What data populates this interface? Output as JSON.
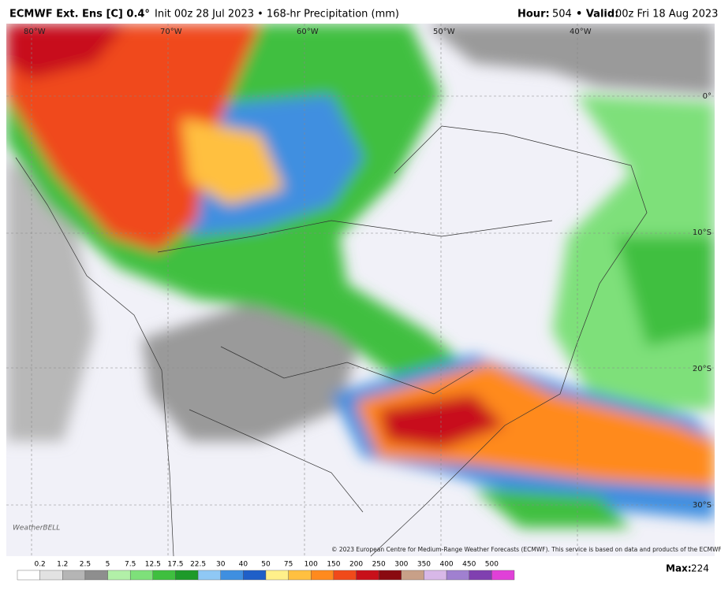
{
  "header": {
    "model": "ECMWF Ext. Ens [C] 0.4°",
    "description": "Init 00z 28 Jul 2023 • 168-hr Precipitation (mm)",
    "hour_label": "Hour:",
    "hour": "504",
    "valid_label": "• Valid:",
    "valid": "00z Fri 18 Aug 2023"
  },
  "map": {
    "longitudes": [
      "80°W",
      "70°W",
      "60°W",
      "50°W",
      "40°W"
    ],
    "latitudes": [
      "0°",
      "10°S",
      "20°S",
      "30°S"
    ],
    "logo": "WeatherBELL",
    "copyright": "© 2023 European Centre for Medium-Range Weather Forecasts (ECMWF). This service is based on data and products of the ECMWF."
  },
  "colorbar": {
    "ticks": [
      0.2,
      1.2,
      2.5,
      5,
      7.5,
      12.5,
      17.5,
      22.5,
      30,
      40,
      50,
      75,
      100,
      150,
      200,
      250,
      300,
      350,
      400,
      450,
      500
    ],
    "colors": [
      "#ffffff",
      "#e2e2e2",
      "#b5b5b5",
      "#8e8e8e",
      "#b2f0a8",
      "#7ee07a",
      "#3fbf3f",
      "#1e9a2a",
      "#8fc8f5",
      "#3f8fe0",
      "#1f5fc8",
      "#fff08a",
      "#ffc040",
      "#ff8a1e",
      "#f04a1a",
      "#c8101a",
      "#8a0a10",
      "#c8a088",
      "#d8b8e8",
      "#a080d0",
      "#8040b0",
      "#e040d8"
    ],
    "max_label": "Max:",
    "max": 224
  }
}
